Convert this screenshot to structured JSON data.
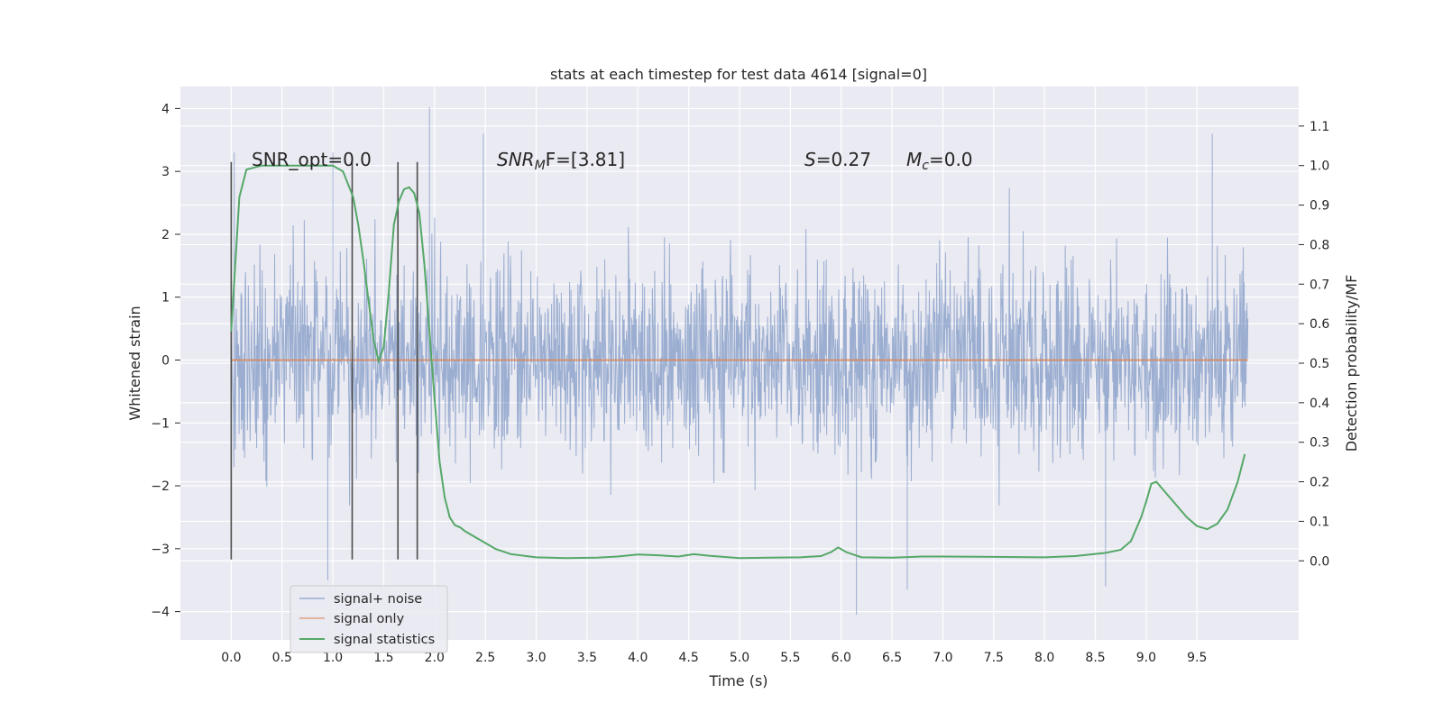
{
  "chart_data": {
    "type": "line",
    "title": "stats at each timestep for test data 4614 [signal=0]",
    "xlabel": "Time (s)",
    "ylabel_left": "Whitened strain",
    "ylabel_right": "Detection probability/MF",
    "xlim": [
      -0.5,
      10.5
    ],
    "ylim_left": [
      -4.45,
      4.35
    ],
    "ylim_right": [
      -0.2,
      1.2
    ],
    "x_ticks": [
      0.0,
      0.5,
      1.0,
      1.5,
      2.0,
      2.5,
      3.0,
      3.5,
      4.0,
      4.5,
      5.0,
      5.5,
      6.0,
      6.5,
      7.0,
      7.5,
      8.0,
      8.5,
      9.0,
      9.5
    ],
    "x_tick_labels": [
      "0.0",
      "0.5",
      "1.0",
      "1.5",
      "2.0",
      "2.5",
      "3.0",
      "3.5",
      "4.0",
      "4.5",
      "5.0",
      "5.5",
      "6.0",
      "6.5",
      "7.0",
      "7.5",
      "8.0",
      "8.5",
      "9.0",
      "9.5"
    ],
    "y_left_ticks": [
      -4,
      -3,
      -2,
      -1,
      0,
      1,
      2,
      3,
      4
    ],
    "y_left_tick_labels": [
      "−4",
      "−3",
      "−2",
      "−1",
      "0",
      "1",
      "2",
      "3",
      "4"
    ],
    "y_right_ticks": [
      0.0,
      0.1,
      0.2,
      0.3,
      0.4,
      0.5,
      0.6,
      0.7,
      0.8,
      0.9,
      1.0,
      1.1
    ],
    "y_right_tick_labels": [
      "0.0",
      "0.1",
      "0.2",
      "0.3",
      "0.4",
      "0.5",
      "0.6",
      "0.7",
      "0.8",
      "0.9",
      "1.0",
      "1.1"
    ],
    "grid": true,
    "legend_position": "bottom-left",
    "annotations": {
      "snr_opt": "SNR_opt=0.0",
      "snr_mf_main": "SNR",
      "snr_mf_sub": "M",
      "snr_mf_tail": "F=[3.81]",
      "s_main": "S",
      "s_tail": "=0.27",
      "mc_main": "M",
      "mc_sub": "c",
      "mc_tail": "=0.0"
    },
    "series": [
      {
        "name": "signal+ noise",
        "color": "#4c72b0",
        "alpha": 0.5,
        "description_envelope": {
          "x_range": [
            0.0,
            10.0
          ],
          "typical_range": [
            -1.3,
            1.3
          ],
          "noise_std": 0.75,
          "notable_peaks": [
            [
              0.03,
              3.3
            ],
            [
              1.95,
              4.02
            ],
            [
              2.48,
              3.6
            ],
            [
              1.0,
              3.3
            ],
            [
              0.95,
              -3.5
            ],
            [
              6.15,
              -4.05
            ],
            [
              6.65,
              -3.65
            ],
            [
              9.65,
              3.6
            ],
            [
              8.6,
              -3.6
            ]
          ]
        }
      },
      {
        "name": "signal only",
        "color": "#dd8452",
        "x": [
          0.0,
          10.0
        ],
        "y": [
          0.0,
          0.0
        ]
      },
      {
        "name": "signal statistics",
        "color": "#55a868",
        "axis": "right",
        "x": [
          0.0,
          0.08,
          0.15,
          0.3,
          0.6,
          1.0,
          1.1,
          1.2,
          1.25,
          1.3,
          1.35,
          1.4,
          1.45,
          1.5,
          1.55,
          1.6,
          1.65,
          1.7,
          1.75,
          1.8,
          1.85,
          1.9,
          1.95,
          2.0,
          2.05,
          2.1,
          2.15,
          2.2,
          2.25,
          2.3,
          2.4,
          2.5,
          2.6,
          2.75,
          3.0,
          3.3,
          3.6,
          3.8,
          4.0,
          4.2,
          4.4,
          4.55,
          4.7,
          5.0,
          5.3,
          5.6,
          5.8,
          5.9,
          5.97,
          6.05,
          6.2,
          6.5,
          6.8,
          7.0,
          7.5,
          8.0,
          8.3,
          8.6,
          8.75,
          8.85,
          8.95,
          9.0,
          9.05,
          9.1,
          9.2,
          9.4,
          9.5,
          9.6,
          9.7,
          9.8,
          9.9,
          9.97
        ],
        "y": [
          0.58,
          0.92,
          0.99,
          1.0,
          1.0,
          1.0,
          0.985,
          0.92,
          0.85,
          0.76,
          0.66,
          0.56,
          0.505,
          0.54,
          0.68,
          0.85,
          0.91,
          0.94,
          0.945,
          0.93,
          0.88,
          0.75,
          0.58,
          0.41,
          0.25,
          0.16,
          0.11,
          0.09,
          0.085,
          0.075,
          0.06,
          0.045,
          0.03,
          0.017,
          0.009,
          0.007,
          0.008,
          0.011,
          0.016,
          0.014,
          0.011,
          0.017,
          0.013,
          0.007,
          0.008,
          0.009,
          0.012,
          0.022,
          0.034,
          0.022,
          0.009,
          0.008,
          0.011,
          0.011,
          0.01,
          0.009,
          0.012,
          0.02,
          0.028,
          0.05,
          0.11,
          0.15,
          0.195,
          0.2,
          0.17,
          0.11,
          0.088,
          0.08,
          0.094,
          0.13,
          0.2,
          0.27
        ]
      }
    ],
    "vertical_lines": [
      {
        "x": 0.0,
        "y_range": [
          -3.17,
          3.15
        ]
      },
      {
        "x": 1.19,
        "y_range": [
          -3.17,
          3.15
        ]
      },
      {
        "x": 1.64,
        "y_range": [
          -3.17,
          3.15
        ]
      },
      {
        "x": 1.83,
        "y_range": [
          -3.17,
          3.15
        ]
      }
    ]
  }
}
